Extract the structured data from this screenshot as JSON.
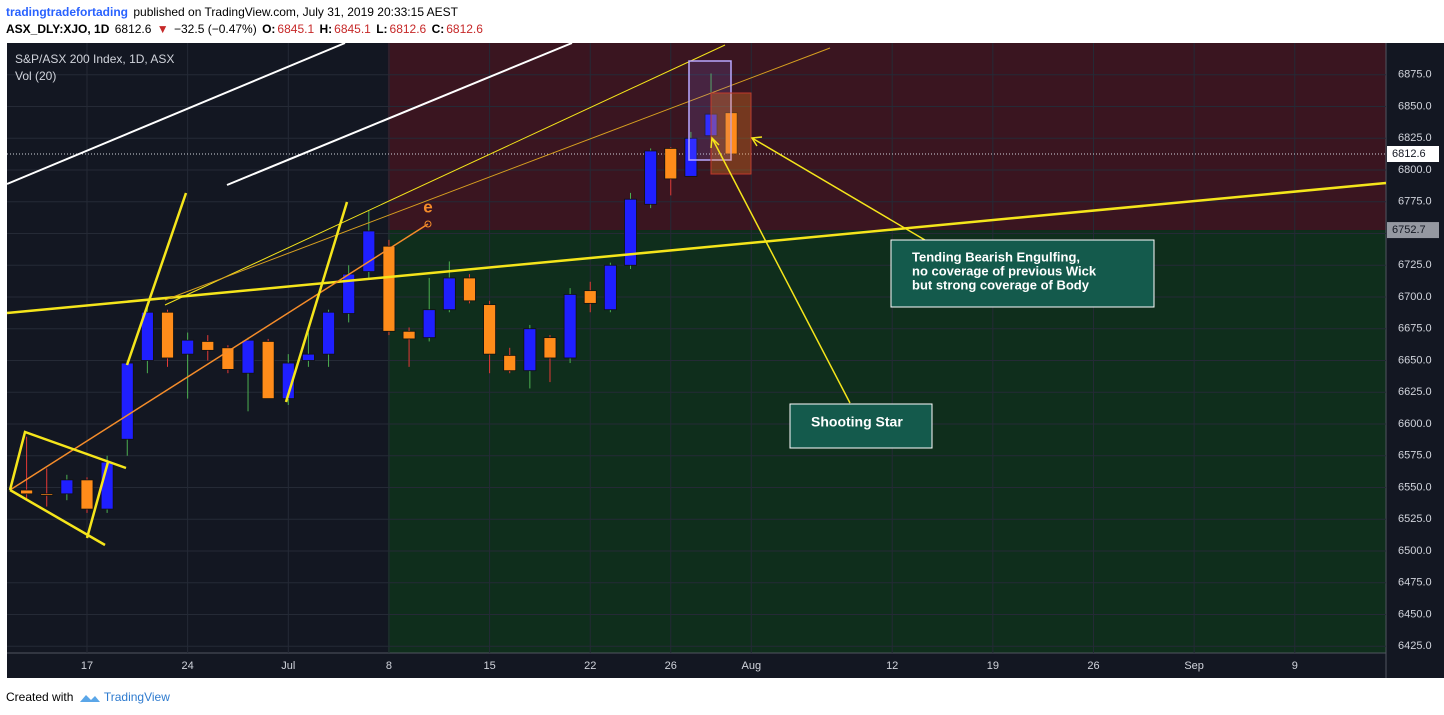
{
  "header": {
    "author": "tradingtradefortading",
    "published": "published on TradingView.com, July 31, 2019 20:33:15 AEST",
    "symbol": "ASX_DLY:XJO, 1D",
    "last": "6812.6",
    "change": "−32.5 (−0.47%)",
    "o_label": "O:",
    "o_value": "6845.1",
    "h_label": "H:",
    "h_value": "6845.1",
    "l_label": "L:",
    "l_value": "6812.6",
    "c_label": "C:",
    "c_value": "6812.6"
  },
  "chart_data": {
    "type": "candlestick",
    "legend_title": "S&P/ASX 200 Index, 1D, ASX",
    "legend_sub": "Vol (20)",
    "categories": [
      null,
      null,
      null,
      "17",
      null,
      null,
      null,
      null,
      "24",
      null,
      null,
      null,
      null,
      "Jul",
      null,
      null,
      null,
      null,
      "8",
      null,
      null,
      null,
      null,
      "15",
      null,
      null,
      null,
      null,
      "22",
      null,
      null,
      null,
      "26",
      null,
      null,
      null,
      "Aug",
      null,
      null,
      null,
      null,
      null,
      null,
      "12",
      null,
      null,
      null,
      null,
      "19",
      null,
      null,
      null,
      null,
      "26",
      null,
      null,
      null,
      null,
      "Sep",
      null,
      null,
      null,
      null,
      "9",
      null,
      null,
      null,
      null
    ],
    "open": [
      6548,
      6545,
      6545,
      6556,
      6533,
      6588,
      6650,
      6688,
      6655,
      6665,
      6660,
      6640,
      6665,
      6620,
      6650,
      6655,
      6687,
      6720,
      6740,
      6673,
      6668,
      6690,
      6715,
      6694,
      6654,
      6642,
      6668,
      6652,
      6705,
      6690,
      6725,
      6773,
      6817,
      6795,
      6827,
      6845.1,
      null,
      null,
      null,
      null,
      null,
      null,
      null,
      null,
      null,
      null,
      null,
      null,
      null,
      null,
      null,
      null,
      null,
      null,
      null,
      null,
      null,
      null,
      null,
      null,
      null,
      null,
      null,
      null,
      null,
      null,
      null,
      null
    ],
    "high": [
      6590,
      6565,
      6560,
      6558,
      6575,
      6650,
      6692,
      6690,
      6672,
      6670,
      6662,
      6668,
      6667,
      6655,
      6672,
      6690,
      6725,
      6768,
      6745,
      6676,
      6715,
      6728,
      6718,
      6697,
      6660,
      6678,
      6670,
      6707,
      6712,
      6727,
      6782,
      6817,
      6818,
      6830,
      6876,
      6845.1,
      null,
      null,
      null,
      null,
      null,
      null,
      null,
      null,
      null,
      null,
      null,
      null,
      null,
      null,
      null,
      null,
      null,
      null,
      null,
      null,
      null,
      null,
      null,
      null,
      null,
      null,
      null,
      null,
      null,
      null,
      null,
      null
    ],
    "low": [
      6540,
      6535,
      6540,
      6530,
      6530,
      6575,
      6640,
      6645,
      6620,
      6650,
      6640,
      6610,
      6620,
      6615,
      6645,
      6645,
      6680,
      6715,
      6670,
      6645,
      6665,
      6688,
      6695,
      6640,
      6640,
      6628,
      6633,
      6648,
      6688,
      6688,
      6722,
      6770,
      6780,
      6795,
      6822,
      6812.6,
      null,
      null,
      null,
      null,
      null,
      null,
      null,
      null,
      null,
      null,
      null,
      null,
      null,
      null,
      null,
      null,
      null,
      null,
      null,
      null,
      null,
      null,
      null,
      null,
      null,
      null,
      null,
      null,
      null,
      null,
      null,
      null
    ],
    "close": [
      6545,
      6544,
      6556,
      6533,
      6570,
      6648,
      6688,
      6652,
      6666,
      6658,
      6643,
      6666,
      6620,
      6648,
      6655,
      6688,
      6718,
      6752,
      6673,
      6667,
      6690,
      6715,
      6697,
      6655,
      6642,
      6675,
      6652,
      6702,
      6695,
      6725,
      6777,
      6815,
      6793,
      6825,
      6844,
      6812.6,
      null,
      null,
      null,
      null,
      null,
      null,
      null,
      null,
      null,
      null,
      null,
      null,
      null,
      null,
      null,
      null,
      null,
      null,
      null,
      null,
      null,
      null,
      null,
      null,
      null,
      null,
      null,
      null,
      null,
      null,
      null,
      null
    ],
    "up_color": "#1f1fff",
    "down_color": "#ff8c1a",
    "up_wick": "#4caf50",
    "down_wick": "#e53935",
    "ylim": [
      6400,
      6900
    ],
    "yticks": [
      {
        "value": 6425,
        "label": "6425.0"
      },
      {
        "value": 6450,
        "label": "6450.0"
      },
      {
        "value": 6475,
        "label": "6475.0"
      },
      {
        "value": 6500,
        "label": "6500.0"
      },
      {
        "value": 6525,
        "label": "6525.0"
      },
      {
        "value": 6550,
        "label": "6550.0"
      },
      {
        "value": 6575,
        "label": "6575.0"
      },
      {
        "value": 6600,
        "label": "6600.0"
      },
      {
        "value": 6625,
        "label": "6625.0"
      },
      {
        "value": 6650,
        "label": "6650.0"
      },
      {
        "value": 6675,
        "label": "6675.0"
      },
      {
        "value": 6700,
        "label": "6700.0"
      },
      {
        "value": 6725,
        "label": "6725.0"
      },
      {
        "value": 6750,
        "label": "6750.0"
      },
      {
        "value": 6775,
        "label": "6775.0"
      },
      {
        "value": 6800,
        "label": "6800.0"
      },
      {
        "value": 6825,
        "label": "6825.0"
      },
      {
        "value": 6850,
        "label": "6850.0"
      },
      {
        "value": 6875,
        "label": "6875.0"
      }
    ],
    "price_lines": [
      6812.6,
      6752.7
    ],
    "grid": true,
    "annotations": {
      "marker": "e",
      "engulfing": [
        "Tending Bearish Engulfing,",
        "no coverage of previous Wick",
        "but strong coverage of Body"
      ],
      "shooting_star": "Shooting Star"
    }
  },
  "footer": {
    "created": "Created with",
    "brand": "TradingView"
  }
}
